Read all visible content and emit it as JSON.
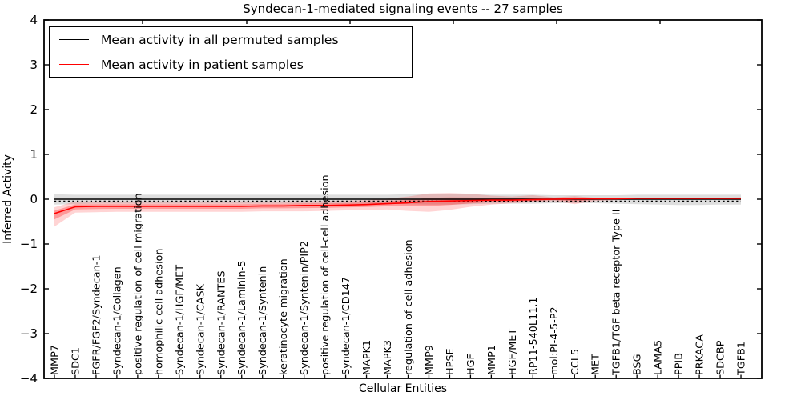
{
  "title": "Syndecan-1-mediated signaling events -- 27 samples",
  "legend": {
    "items": [
      {
        "label": "Mean activity in all permuted samples",
        "color": "#000000"
      },
      {
        "label": "Mean activity in patient samples",
        "color": "#ff0000"
      }
    ]
  },
  "colors": {
    "permuted_line": "#000000",
    "patient_line": "#ff0000",
    "permuted_band_fill": "rgba(0,0,0,0.13)",
    "patient_band_outer_fill": "rgba(255,0,0,0.17)",
    "patient_band_inner_fill": "rgba(255,0,0,0.28)",
    "axis": "#000000"
  },
  "chart_data": {
    "type": "line",
    "title": "Syndecan-1-mediated signaling events -- 27 samples",
    "xlabel": "Cellular Entities",
    "ylabel": "Inferred Activity",
    "ylim": [
      -4,
      4
    ],
    "yticks": [
      -4,
      -3,
      -2,
      -1,
      0,
      1,
      2,
      3,
      4
    ],
    "grid": false,
    "legend_position": "upper left",
    "categories": [
      "MMP7",
      "SDC1",
      "FGFR/FGF2/Syndecan-1",
      "Syndecan-1/Collagen",
      "positive regulation of cell migration",
      "homophilic cell adhesion",
      "Syndecan-1/HGF/MET",
      "Syndecan-1/CASK",
      "Syndecan-1/RANTES",
      "Syndecan-1/Laminin-5",
      "Syndecan-1/Syntenin",
      "keratinocyte migration",
      "Syndecan-1/Syntenin/PIP2",
      "positive regulation of cell-cell adhesion",
      "Syndecan-1/CD147",
      "MAPK1",
      "MAPK3",
      "regulation of cell adhesion",
      "MMP9",
      "HPSE",
      "HGF",
      "MMP1",
      "HGF/MET",
      "RP11-540L11.1",
      "mol:PI-4-5-P2",
      "CCL5",
      "MET",
      "TGFB1/TGF beta receptor Type II",
      "BSG",
      "LAMA5",
      "PPIB",
      "PRKACA",
      "SDCBP",
      "TGFB1"
    ],
    "series": [
      {
        "name": "Mean activity in all permuted samples",
        "color": "#000000",
        "style": "solid",
        "values": [
          0,
          0,
          0,
          0,
          0,
          0,
          0,
          0,
          0,
          0,
          0,
          0,
          0,
          0,
          0,
          0,
          0,
          0,
          0,
          0,
          0,
          0,
          0,
          0,
          0,
          0,
          0,
          0,
          0,
          0,
          0,
          0,
          0,
          0
        ]
      },
      {
        "name": "Permuted reference (dotted)",
        "color": "#000000",
        "style": "dotted",
        "values": [
          -0.045,
          -0.045,
          -0.045,
          -0.045,
          -0.045,
          -0.045,
          -0.045,
          -0.045,
          -0.045,
          -0.045,
          -0.045,
          -0.045,
          -0.045,
          -0.045,
          -0.045,
          -0.045,
          -0.045,
          -0.045,
          -0.045,
          -0.045,
          -0.045,
          -0.045,
          -0.045,
          -0.045,
          -0.045,
          -0.045,
          -0.045,
          -0.045,
          -0.045,
          -0.045,
          -0.045,
          -0.045,
          -0.045,
          -0.045
        ]
      },
      {
        "name": "Mean activity in patient samples",
        "color": "#ff0000",
        "style": "solid",
        "values": [
          -0.32,
          -0.17,
          -0.16,
          -0.16,
          -0.16,
          -0.16,
          -0.16,
          -0.16,
          -0.16,
          -0.16,
          -0.15,
          -0.15,
          -0.14,
          -0.14,
          -0.13,
          -0.12,
          -0.1,
          -0.08,
          -0.05,
          -0.04,
          -0.03,
          -0.02,
          -0.02,
          -0.01,
          0.0,
          0.01,
          0.01,
          0.01,
          0.02,
          0.02,
          0.02,
          0.02,
          0.02,
          0.02
        ]
      }
    ],
    "bands": [
      {
        "name": "permuted activity range",
        "top": [
          0.11,
          0.1,
          0.1,
          0.1,
          0.1,
          0.1,
          0.1,
          0.1,
          0.1,
          0.1,
          0.1,
          0.1,
          0.1,
          0.1,
          0.1,
          0.1,
          0.1,
          0.11,
          0.12,
          0.12,
          0.11,
          0.1,
          0.1,
          0.1,
          0.09,
          0.09,
          0.09,
          0.09,
          0.1,
          0.1,
          0.1,
          0.1,
          0.1,
          0.1
        ],
        "bottom": [
          -0.12,
          -0.11,
          -0.1,
          -0.1,
          -0.1,
          -0.1,
          -0.1,
          -0.1,
          -0.1,
          -0.1,
          -0.1,
          -0.1,
          -0.1,
          -0.1,
          -0.1,
          -0.1,
          -0.1,
          -0.11,
          -0.12,
          -0.12,
          -0.11,
          -0.1,
          -0.1,
          -0.1,
          -0.09,
          -0.09,
          -0.09,
          -0.1,
          -0.11,
          -0.12,
          -0.13,
          -0.13,
          -0.12,
          -0.12
        ]
      },
      {
        "name": "patient activity range",
        "top": [
          -0.18,
          -0.05,
          -0.05,
          -0.05,
          -0.05,
          -0.05,
          -0.05,
          -0.05,
          -0.05,
          -0.05,
          -0.05,
          -0.05,
          -0.04,
          -0.04,
          -0.03,
          -0.02,
          0.01,
          0.06,
          0.13,
          0.14,
          0.12,
          0.08,
          0.06,
          0.09,
          0.04,
          0.07,
          0.03,
          0.02,
          0.03,
          0.03,
          0.03,
          0.03,
          0.03,
          0.04
        ],
        "bottom": [
          -0.61,
          -0.3,
          -0.29,
          -0.28,
          -0.28,
          -0.28,
          -0.28,
          -0.28,
          -0.28,
          -0.28,
          -0.27,
          -0.27,
          -0.27,
          -0.26,
          -0.25,
          -0.24,
          -0.23,
          -0.26,
          -0.28,
          -0.24,
          -0.17,
          -0.12,
          -0.09,
          -0.07,
          -0.04,
          -0.11,
          -0.04,
          -0.02,
          -0.01,
          -0.01,
          -0.01,
          -0.01,
          -0.01,
          -0.02
        ]
      }
    ]
  }
}
